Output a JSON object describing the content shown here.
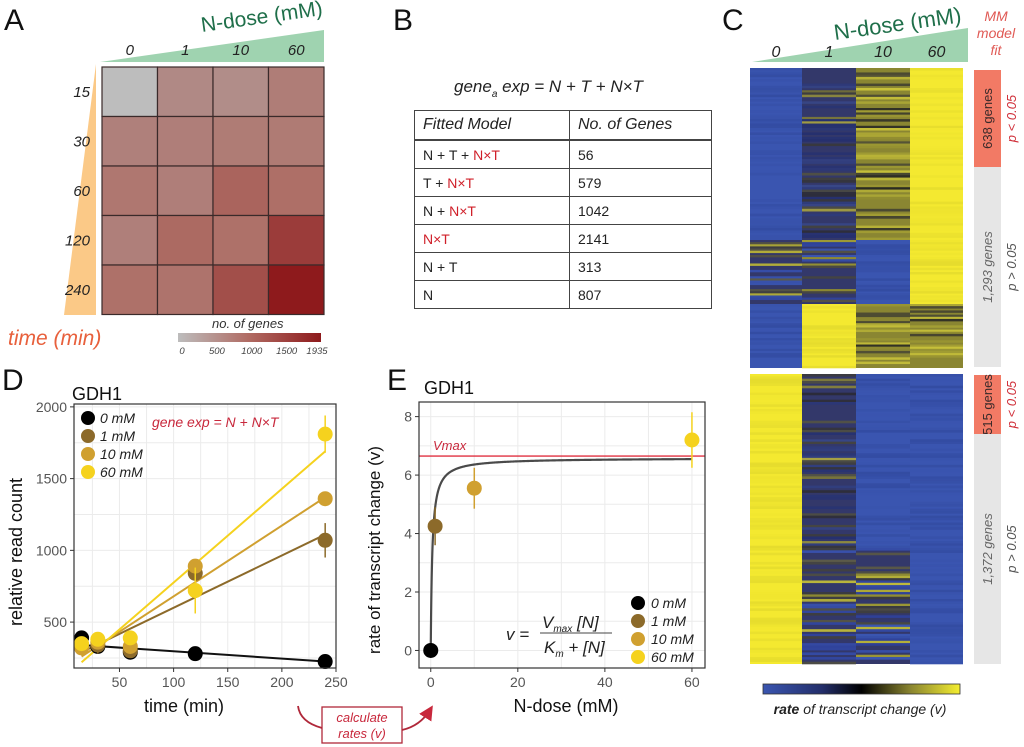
{
  "figure": {
    "panel_labels": [
      "A",
      "B",
      "C",
      "D",
      "E"
    ]
  },
  "colors": {
    "ndose_green": "#1f6f4a",
    "ndose_wedge": "#9fd3b0",
    "time_orange": "#e8603c",
    "time_wedge": "#fbc987",
    "accent_red": "#c8283c",
    "sig_box": "#f27a65",
    "nonsig_box": "#e6e6e6",
    "dose_0": "#000000",
    "dose_1": "#8c6a2a",
    "dose_10": "#d0a030",
    "dose_60": "#f5d21e",
    "heat_blue": "#3a55b0",
    "heat_yellow": "#f4e930"
  },
  "panelA": {
    "ndose_title": "N-dose (mM)",
    "time_title": "time (min)",
    "legend_title": "no. of genes",
    "legend_ticks": [
      "0",
      "500",
      "1000",
      "1500",
      "1935"
    ]
  },
  "panelB": {
    "equation": {
      "lhs": "gene",
      "sub": "a",
      "lhs2": " exp = ",
      "rhs": "N + T + N×T"
    },
    "headers": [
      "Fitted Model",
      "No. of Genes"
    ],
    "rows": [
      {
        "prefix": "N + T + ",
        "interaction": "N×T",
        "genes": "56"
      },
      {
        "prefix": "T + ",
        "interaction": "N×T",
        "genes": "579"
      },
      {
        "prefix": "N + ",
        "interaction": "N×T",
        "genes": "1042"
      },
      {
        "prefix": "",
        "interaction": "N×T",
        "genes": "2141"
      },
      {
        "prefix": "N + T",
        "interaction": "",
        "genes": "313"
      },
      {
        "prefix": "N",
        "interaction": "",
        "genes": "807"
      }
    ]
  },
  "panelC": {
    "ndose_title": "N-dose (mM)",
    "doses": [
      "0",
      "1",
      "10",
      "60"
    ],
    "mm_title": [
      "MM",
      "model",
      "fit"
    ],
    "groups": [
      {
        "label": "638 genes",
        "p": "p < 0.05",
        "significant": true
      },
      {
        "label": "1,293 genes",
        "p": "p > 0.05",
        "significant": false
      },
      {
        "label": "515 genes",
        "p": "p < 0.05",
        "significant": true
      },
      {
        "label": "1,372 genes",
        "p": "p > 0.05",
        "significant": false
      }
    ],
    "colorbar_label_bold": "rate",
    "colorbar_label_rest": " of transcript change (v)"
  },
  "annotation": {
    "arrow_box_line1": "calculate",
    "arrow_box_line2": "rates (v)"
  },
  "chart_data": [
    {
      "panel": "A",
      "type": "heatmap",
      "title": "",
      "xlabel": "N-dose (mM)",
      "ylabel": "time (min)",
      "x": [
        "0",
        "1",
        "10",
        "60"
      ],
      "y": [
        "15",
        "30",
        "60",
        "120",
        "240"
      ],
      "values": [
        [
          0,
          600,
          550,
          850
        ],
        [
          780,
          820,
          880,
          900
        ],
        [
          980,
          820,
          1250,
          1150
        ],
        [
          800,
          1200,
          1100,
          1620
        ],
        [
          1100,
          1050,
          1450,
          1935
        ]
      ],
      "value_range": [
        0,
        1935
      ],
      "colorscale": [
        "#bdbdbd",
        "#8e1a1c"
      ],
      "legend_title": "no. of genes",
      "legend_ticks": [
        0,
        500,
        1000,
        1500,
        1935
      ]
    },
    {
      "panel": "C",
      "type": "heatmap",
      "title": "",
      "xlabel": "N-dose (mM)",
      "x": [
        "0",
        "1",
        "10",
        "60"
      ],
      "row_groups": [
        {
          "label": "638 genes",
          "p": "p < 0.05",
          "pattern": [
            "blue",
            "dark",
            "olive",
            "yellow"
          ]
        },
        {
          "label": "1,293 genes",
          "p": "p > 0.05",
          "pattern": [
            "blue",
            "dark",
            "mixed",
            "yellow"
          ]
        },
        {
          "label": "515 genes",
          "p": "p < 0.05",
          "pattern": [
            "yellow",
            "dark",
            "blue",
            "blue"
          ]
        },
        {
          "label": "1,372 genes",
          "p": "p > 0.05",
          "pattern": [
            "yellow",
            "dark",
            "mixed",
            "blue"
          ]
        }
      ],
      "colorscale": [
        "#3a55b0",
        "#000000",
        "#f4e930"
      ],
      "colorbar_label": "rate of transcript change (v)"
    },
    {
      "panel": "D",
      "type": "scatter",
      "title": "GDH1",
      "xlabel": "time (min)",
      "ylabel": "relative read count",
      "xlim": [
        8,
        250
      ],
      "ylim": [
        180,
        2020
      ],
      "xticks": [
        50,
        100,
        150,
        200,
        250
      ],
      "yticks": [
        500,
        1000,
        1500,
        2000
      ],
      "grid": true,
      "legend": "top-left",
      "annotation": "gene exp = N + N×T",
      "series": [
        {
          "name": "0 mM",
          "color": "#000000",
          "points": [
            [
              15,
              390
            ],
            [
              30,
              330
            ],
            [
              60,
              290
            ],
            [
              120,
              280
            ],
            [
              240,
              225
            ]
          ],
          "fit": [
            [
              15,
              340
            ],
            [
              240,
              225
            ]
          ]
        },
        {
          "name": "1 mM",
          "color": "#8c6a2a",
          "points": [
            [
              15,
              330
            ],
            [
              30,
              340
            ],
            [
              60,
              300
            ],
            [
              120,
              840
            ],
            [
              240,
              1070
            ]
          ],
          "errors": [
            0,
            60,
            0,
            0,
            120
          ],
          "fit": [
            [
              15,
              290
            ],
            [
              240,
              1110
            ]
          ]
        },
        {
          "name": "10 mM",
          "color": "#d0a030",
          "points": [
            [
              15,
              320
            ],
            [
              30,
              360
            ],
            [
              60,
              330
            ],
            [
              120,
              890
            ],
            [
              240,
              1360
            ]
          ],
          "fit": [
            [
              15,
              260
            ],
            [
              240,
              1370
            ]
          ]
        },
        {
          "name": "60 mM",
          "color": "#f5d21e",
          "points": [
            [
              15,
              350
            ],
            [
              30,
              380
            ],
            [
              60,
              390
            ],
            [
              120,
              720
            ],
            [
              240,
              1810
            ]
          ],
          "errors": [
            0,
            0,
            0,
            160,
            130
          ],
          "fit": [
            [
              15,
              220
            ],
            [
              240,
              1690
            ]
          ]
        }
      ]
    },
    {
      "panel": "E",
      "type": "scatter",
      "title": "GDH1",
      "xlabel": "N-dose (mM)",
      "ylabel": "rate of transcript change (v)",
      "xlim": [
        -2.7,
        63
      ],
      "ylim": [
        -0.6,
        8.5
      ],
      "xticks": [
        0,
        20,
        40,
        60
      ],
      "yticks": [
        0,
        2,
        4,
        6,
        8
      ],
      "grid": true,
      "legend": "bottom-right",
      "vmax": 6.65,
      "vmax_label": "Vmax",
      "km": 0.35,
      "equation": {
        "v": "v =",
        "num_main": "V",
        "num_sub": "max",
        "num_tail": " [N]",
        "den_main": "K",
        "den_sub": "m",
        "den_tail": " + [N]"
      },
      "series": [
        {
          "name": "0 mM",
          "color": "#000000",
          "x": 0,
          "y": 0,
          "err": 0
        },
        {
          "name": "1 mM",
          "color": "#8c6a2a",
          "x": 1,
          "y": 4.25,
          "err": 0.65
        },
        {
          "name": "10 mM",
          "color": "#d0a030",
          "x": 10,
          "y": 5.55,
          "err": 0.7
        },
        {
          "name": "60 mM",
          "color": "#f5d21e",
          "x": 60,
          "y": 7.2,
          "err": 0.95
        }
      ]
    }
  ]
}
